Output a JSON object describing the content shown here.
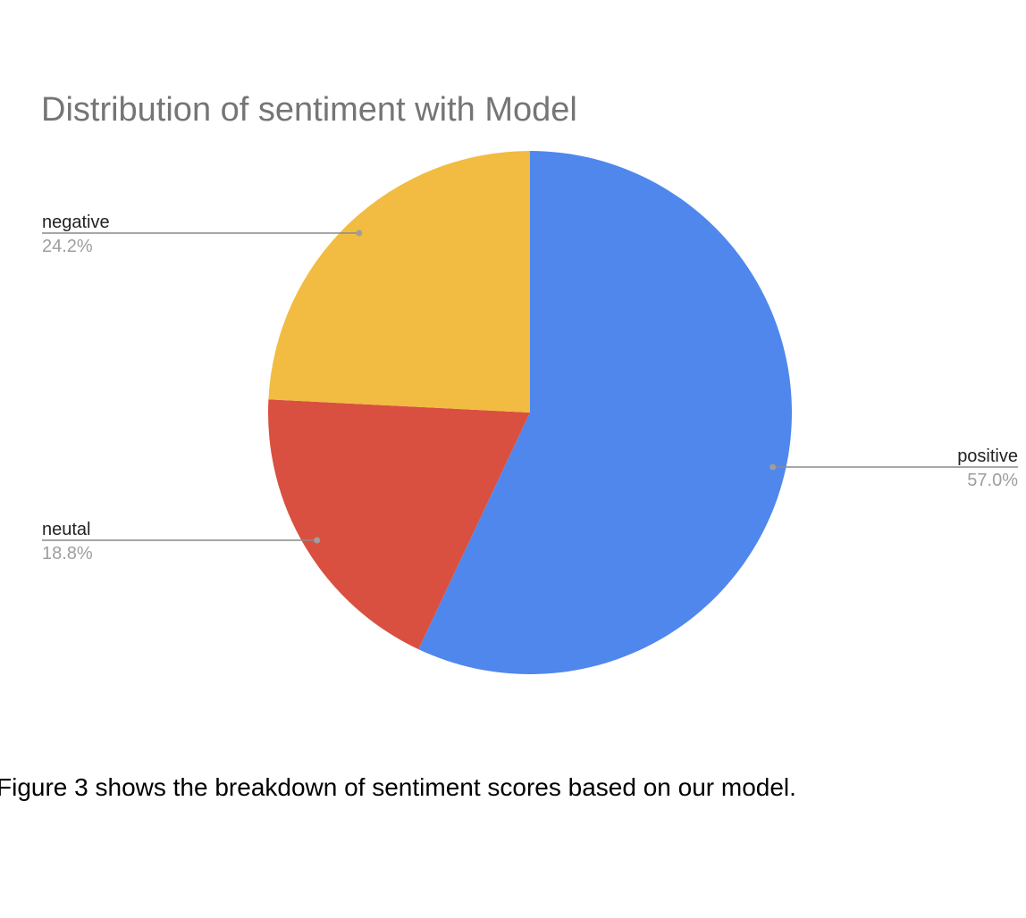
{
  "chart_data": {
    "type": "pie",
    "title": "Distribution of sentiment with Model",
    "slices": [
      {
        "label": "positive",
        "value": 57.0,
        "value_label": "57.0%",
        "color": "#5087EC"
      },
      {
        "label": "neutal",
        "value": 18.8,
        "value_label": "18.8%",
        "color": "#D95040"
      },
      {
        "label": "negative",
        "value": 24.2,
        "value_label": "24.2%",
        "color": "#F1BC41"
      }
    ],
    "start_angle": "12 o'clock",
    "direction": "clockwise",
    "legend": "none",
    "label_style": "leader-lines"
  },
  "caption": "Figure 3 shows the breakdown of sentiment scores based on our model."
}
